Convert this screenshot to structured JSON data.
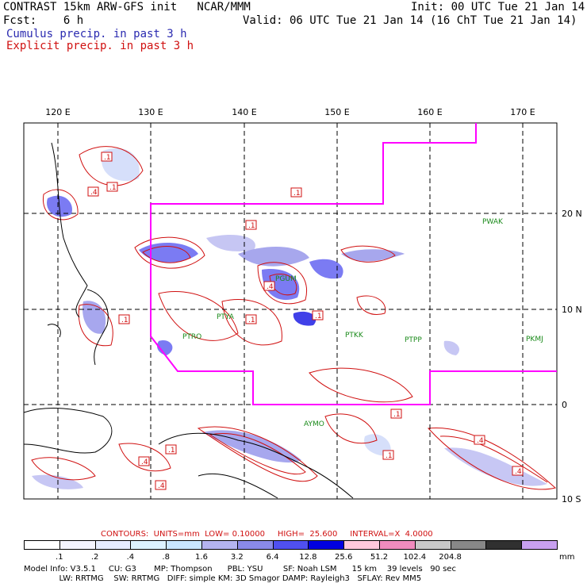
{
  "header": {
    "title": "CONTRAST 15km ARW-GFS init   NCAR/MMM",
    "init": "Init: 00 UTC Tue 21 Jan 14",
    "fcst": "Fcst:    6 h",
    "valid": "Valid: 06 UTC Tue 21 Jan 14 (16 ChT Tue 21 Jan 14)",
    "cumulus": "Cumulus precip. in past 3 h",
    "explicit": "Explicit precip. in past 3 h"
  },
  "axes": {
    "lon_labels": [
      "120 E",
      "130 E",
      "140 E",
      "150 E",
      "160 E",
      "170 E"
    ],
    "lat_labels": [
      "20 N",
      "10 N",
      "0",
      "10 S"
    ]
  },
  "stations": [
    "PWAK",
    "PGUM",
    "PTYA",
    "PTRO",
    "PTKK",
    "PTPP",
    "PKMJ",
    "AYMO"
  ],
  "contour_label": ".1",
  "contour_label_alt": ".4",
  "contours_line": {
    "label": "CONTOURS:  UNITS=mm  LOW= 0.10000     HIGH=  25.600     INTERVAL=X  4.0000"
  },
  "colorbar": {
    "ticks": [
      ".1",
      ".2",
      ".4",
      ".8",
      "1.6",
      "3.2",
      "6.4",
      "12.8",
      "25.6",
      "51.2",
      "102.4",
      "204.8"
    ],
    "unit": "mm",
    "colors": [
      "#ffffff",
      "#f4f4ff",
      "#e6ecff",
      "#dcf2ff",
      "#c8e6ff",
      "#b4b4f0",
      "#8a8ae8",
      "#5050f0",
      "#0000e0",
      "#ffc8dc",
      "#f08cbe",
      "#c8c8c8",
      "#888888",
      "#303030",
      "#c8a0f0"
    ]
  },
  "footer": {
    "line1": "Model Info: V3.5.1     CU: G3       MP: Thompson      PBL: YSU        SF: Noah LSM      15 km    39 levels   90 sec",
    "line2": "              LW: RRTMG    SW: RRTMG   DIFF: simple KM: 3D Smagor DAMP: Rayleigh3   SFLAY: Rev MM5"
  },
  "colors": {
    "boundary": "#ff00ff",
    "explicit": "#d01010",
    "cumulus": "#2a2ab0"
  }
}
